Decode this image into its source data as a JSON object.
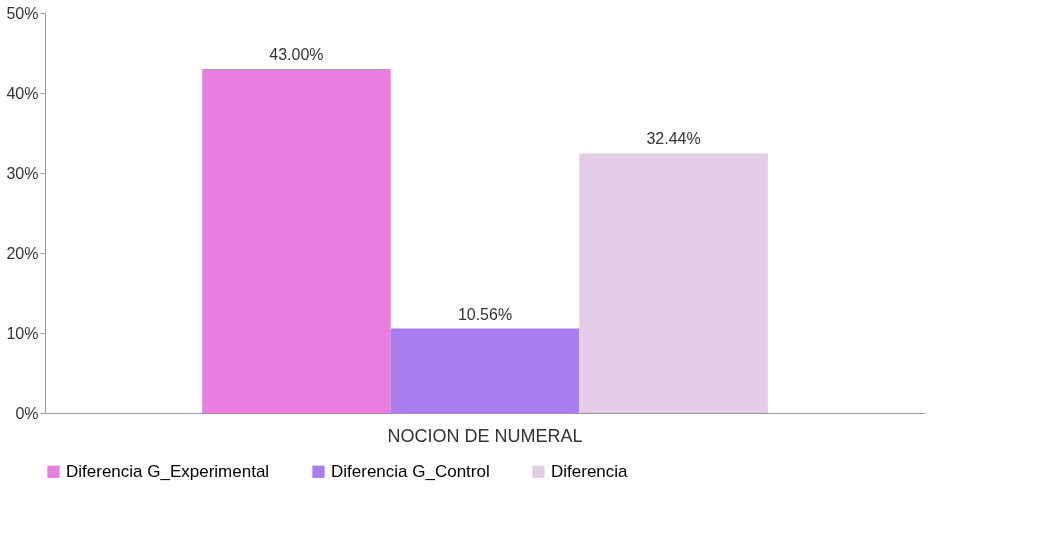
{
  "chart_data": {
    "type": "bar",
    "categories": [
      "NOCION DE NUMERAL"
    ],
    "series": [
      {
        "name": "Diferencia G_Experimental",
        "color": "#e87fdf",
        "values": [
          43.0
        ],
        "value_labels": [
          "43.00%"
        ]
      },
      {
        "name": "Diferencia G_Control",
        "color": "#a97cf0",
        "values": [
          10.56
        ],
        "value_labels": [
          "10.56%"
        ]
      },
      {
        "name": "Diferencia",
        "color": "#e3cce6",
        "values": [
          32.44
        ],
        "value_labels": [
          "32.44%"
        ]
      }
    ],
    "ylim": [
      0,
      50
    ],
    "yticks": [
      {
        "value": 0,
        "label": "0%"
      },
      {
        "value": 10,
        "label": "10%"
      },
      {
        "value": 20,
        "label": "20%"
      },
      {
        "value": 30,
        "label": "30%"
      },
      {
        "value": 40,
        "label": "40%"
      },
      {
        "value": 50,
        "label": "50%"
      }
    ],
    "grid": false,
    "legend": "bottom"
  }
}
